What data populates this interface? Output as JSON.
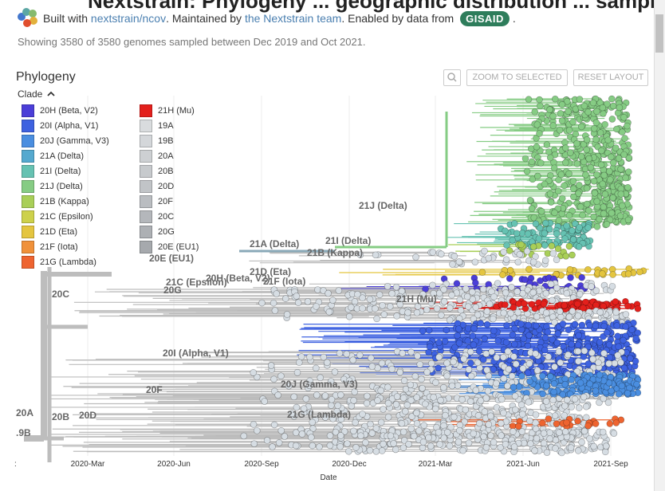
{
  "header": {
    "cut_title": "Nextstrain: Phylogeny ... geographic distribution ... sampling",
    "built_with_prefix": "Built with",
    "built_with_link": "nextstrain/ncov",
    "maintained_prefix": ". Maintained by",
    "maintained_link": "the Nextstrain team",
    "enabled_prefix": ". Enabled by data from",
    "gisaid_logo": "GISAID",
    "enabled_suffix": ".",
    "showing_text": "Showing 3580 of 3580 genomes sampled between Dec 2019 and Oct 2021."
  },
  "panel": {
    "title": "Phylogeny",
    "zoom_to_selected": "ZOOM TO SELECTED",
    "reset_layout": "RESET LAYOUT",
    "zoom_icon": "magnifier-icon"
  },
  "legend": {
    "title": "Clade",
    "collapse_icon": "chevron-up-icon",
    "items": [
      {
        "label": "20H (Beta, V2)",
        "color": "#4b3ed8"
      },
      {
        "label": "20I (Alpha, V1)",
        "color": "#3e62e0"
      },
      {
        "label": "20J (Gamma, V3)",
        "color": "#4a8ee0"
      },
      {
        "label": "21A (Delta)",
        "color": "#55a9cf"
      },
      {
        "label": "21I (Delta)",
        "color": "#66c2b2"
      },
      {
        "label": "21J (Delta)",
        "color": "#86cc84"
      },
      {
        "label": "21B (Kappa)",
        "color": "#a9cf58"
      },
      {
        "label": "21C (Epsilon)",
        "color": "#cdd14b"
      },
      {
        "label": "21D (Eta)",
        "color": "#e4c53f"
      },
      {
        "label": "21F (Iota)",
        "color": "#f0913a"
      },
      {
        "label": "21G (Lambda)",
        "color": "#ee6430"
      },
      {
        "label": "21H (Mu)",
        "color": "#e3201c"
      },
      {
        "label": "19A",
        "color": "#d9dcde"
      },
      {
        "label": "19B",
        "color": "#d4d7da"
      },
      {
        "label": "20A",
        "color": "#cdd0d3"
      },
      {
        "label": "20B",
        "color": "#c7cacd"
      },
      {
        "label": "20D",
        "color": "#c1c4c7"
      },
      {
        "label": "20F",
        "color": "#babdc1"
      },
      {
        "label": "20C",
        "color": "#b4b7bb"
      },
      {
        "label": "20G",
        "color": "#adb0b4"
      },
      {
        "label": "20E (EU1)",
        "color": "#a6a9ad"
      }
    ]
  },
  "tree": {
    "clade_labels": [
      {
        "text": "21J (Delta)"
      },
      {
        "text": "21A (Delta)"
      },
      {
        "text": "21I (Delta)"
      },
      {
        "text": "21B (Kappa)"
      },
      {
        "text": "20E (EU1)"
      },
      {
        "text": "21D (Eta)"
      },
      {
        "text": "20H (Beta, V2)"
      },
      {
        "text": "21C (Epsilon)"
      },
      {
        "text": "21F (Iota)"
      },
      {
        "text": "20G"
      },
      {
        "text": "20C"
      },
      {
        "text": "21H (Mu)"
      },
      {
        "text": "20I (Alpha, V1)"
      },
      {
        "text": "20F"
      },
      {
        "text": "20J (Gamma, V3)"
      },
      {
        "text": "20A"
      },
      {
        "text": "20B"
      },
      {
        "text": "20D"
      },
      {
        "text": "21G (Lambda)"
      },
      {
        "text": ".9B"
      }
    ],
    "x_ticks": [
      "2020-Mar",
      "2020-Jun",
      "2020-Sep",
      "2020-Dec",
      "2021-Mar",
      "2021-Jun",
      "2021-Sep"
    ],
    "x_axis_title": "Date",
    "axis_edge_mark": ":"
  },
  "colors": {
    "branch_grey": "#bdbdbd",
    "tip_grey": "#d6dde3",
    "link": "#4a7fb0"
  }
}
